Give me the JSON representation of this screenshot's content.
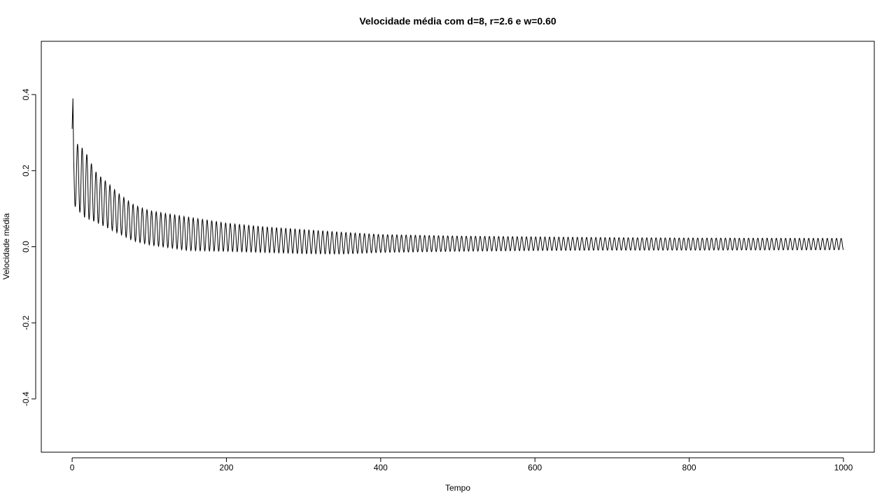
{
  "chart_data": {
    "type": "line",
    "title": "Velocidade média com d=8, r=2.6 e w=0.60",
    "xlabel": "Tempo",
    "ylabel": "Velocidade média",
    "xlim": [
      -40,
      1040
    ],
    "ylim": [
      -0.54,
      0.54
    ],
    "xticks": [
      0,
      200,
      400,
      600,
      800,
      1000
    ],
    "yticks": [
      -0.4,
      -0.2,
      0.0,
      0.2,
      0.4
    ],
    "xtick_labels": [
      "0",
      "200",
      "400",
      "600",
      "800",
      "1000"
    ],
    "ytick_labels": [
      "-0.4",
      "-0.2",
      "0.0",
      "0.2",
      "0.4"
    ],
    "grid": false,
    "line_color": "#000000",
    "series": [
      {
        "period": 6,
        "x_start": 0,
        "x_end": 1000,
        "start_value": 0.31,
        "initial_peak": {
          "x": 1,
          "y": 0.39
        },
        "peak_envelope": [
          [
            7,
            0.27
          ],
          [
            13,
            0.26
          ],
          [
            20,
            0.24
          ],
          [
            27,
            0.21
          ],
          [
            33,
            0.19
          ],
          [
            40,
            0.18
          ],
          [
            50,
            0.16
          ],
          [
            60,
            0.14
          ],
          [
            80,
            0.11
          ],
          [
            100,
            0.095
          ],
          [
            120,
            0.088
          ],
          [
            150,
            0.078
          ],
          [
            200,
            0.062
          ],
          [
            250,
            0.052
          ],
          [
            300,
            0.045
          ],
          [
            350,
            0.038
          ],
          [
            400,
            0.032
          ],
          [
            500,
            0.028
          ],
          [
            600,
            0.026
          ],
          [
            700,
            0.024
          ],
          [
            800,
            0.023
          ],
          [
            1000,
            0.022
          ]
        ],
        "trough_envelope": [
          [
            4,
            0.105
          ],
          [
            10,
            0.09
          ],
          [
            17,
            0.075
          ],
          [
            24,
            0.07
          ],
          [
            30,
            0.065
          ],
          [
            40,
            0.055
          ],
          [
            60,
            0.035
          ],
          [
            80,
            0.015
          ],
          [
            100,
            0.005
          ],
          [
            150,
            -0.01
          ],
          [
            200,
            -0.012
          ],
          [
            250,
            -0.015
          ],
          [
            300,
            -0.018
          ],
          [
            350,
            -0.019
          ],
          [
            400,
            -0.015
          ],
          [
            500,
            -0.012
          ],
          [
            600,
            -0.01
          ],
          [
            700,
            -0.009
          ],
          [
            800,
            -0.009
          ],
          [
            1000,
            -0.008
          ]
        ]
      }
    ]
  }
}
